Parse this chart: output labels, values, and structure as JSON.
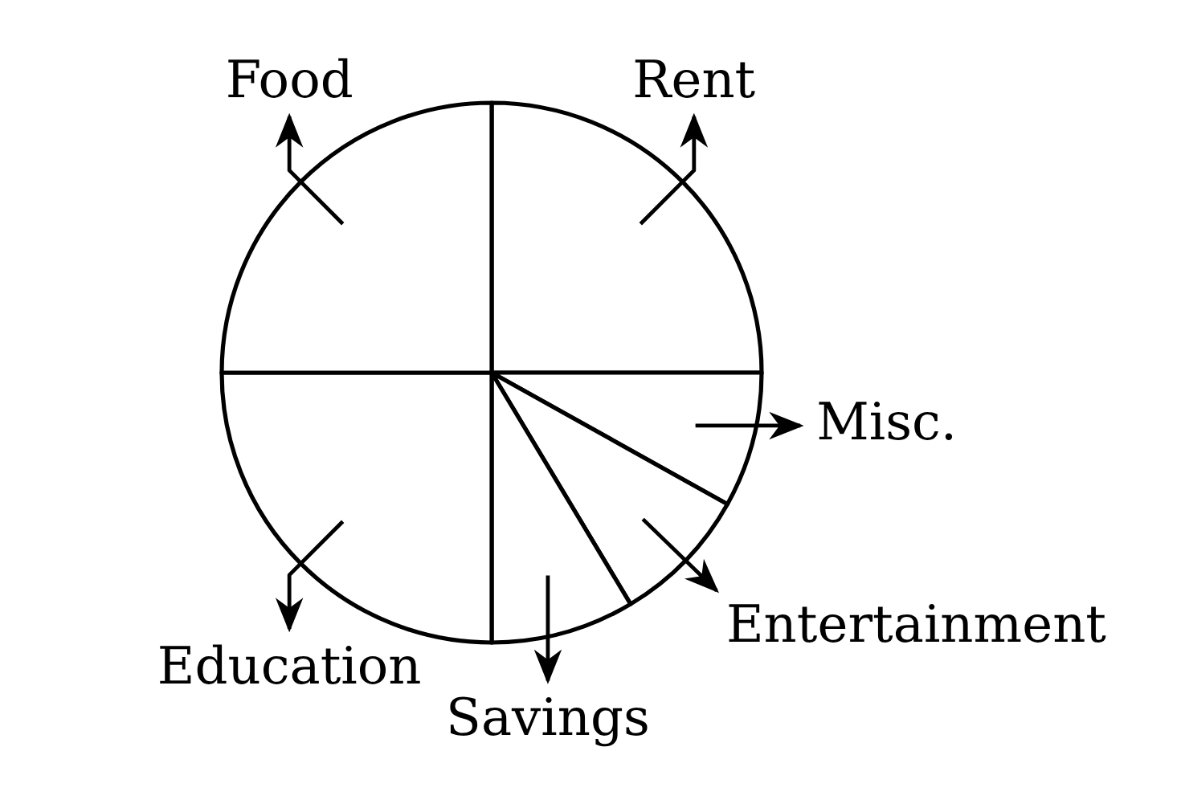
{
  "chart_data": {
    "type": "pie",
    "categories": [
      "Rent",
      "Misc.",
      "Entertainment",
      "Savings",
      "Education",
      "Food"
    ],
    "values": [
      25,
      8.1,
      8.3,
      8.6,
      25,
      25
    ],
    "colors": [
      "#ffffff",
      "#ffffff",
      "#ffffff",
      "#ffffff",
      "#ffffff",
      "#ffffff"
    ]
  }
}
